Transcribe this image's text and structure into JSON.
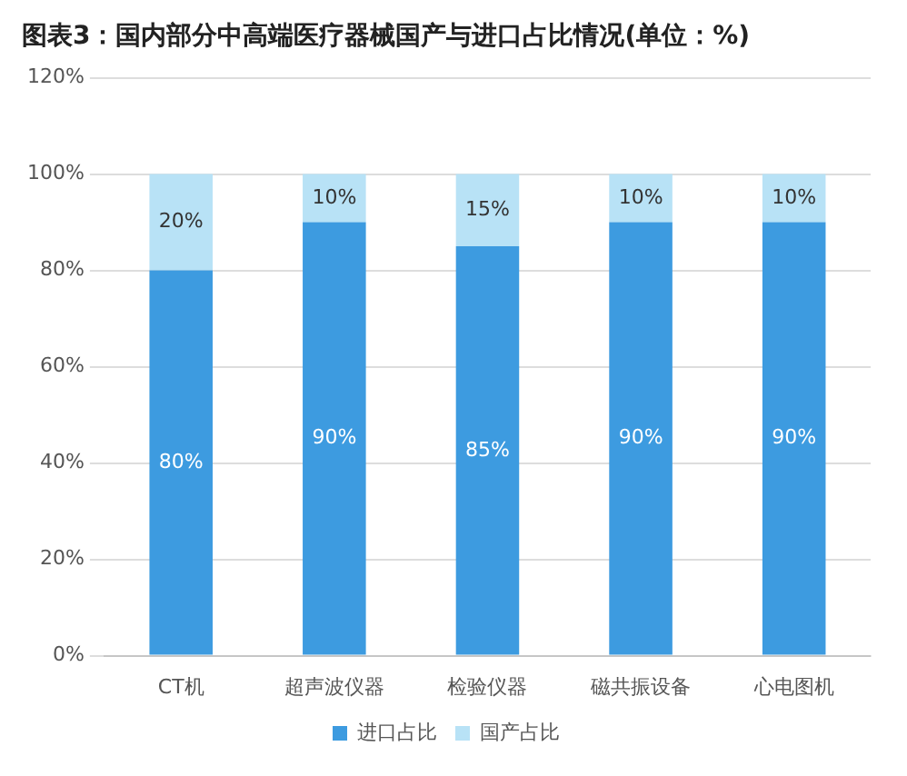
{
  "chart_data": {
    "type": "bar",
    "title": "图表3：国内部分中高端医疗器械国产与进口占比情况(单位：%)",
    "categories": [
      "CT机",
      "超声波仪器",
      "检验仪器",
      "磁共振设备",
      "心电图机"
    ],
    "stacked": true,
    "series": [
      {
        "name": "进口占比",
        "color": "#3d9be0",
        "values": [
          80,
          90,
          85,
          90,
          90
        ],
        "value_labels": [
          "80%",
          "90%",
          "85%",
          "90%",
          "90%"
        ]
      },
      {
        "name": "国产占比",
        "color": "#b8e2f6",
        "values": [
          20,
          10,
          15,
          10,
          10
        ],
        "value_labels": [
          "20%",
          "10%",
          "15%",
          "10%",
          "10%"
        ]
      }
    ],
    "ylim": [
      0,
      120
    ],
    "yticks": [
      {
        "value": 0,
        "label": "0%"
      },
      {
        "value": 20,
        "label": "20%"
      },
      {
        "value": 40,
        "label": "40%"
      },
      {
        "value": 60,
        "label": "60%"
      },
      {
        "value": 80,
        "label": "80%"
      },
      {
        "value": 100,
        "label": "100%"
      },
      {
        "value": 120,
        "label": "120%"
      }
    ],
    "grid": "y",
    "legend": "bottom"
  }
}
